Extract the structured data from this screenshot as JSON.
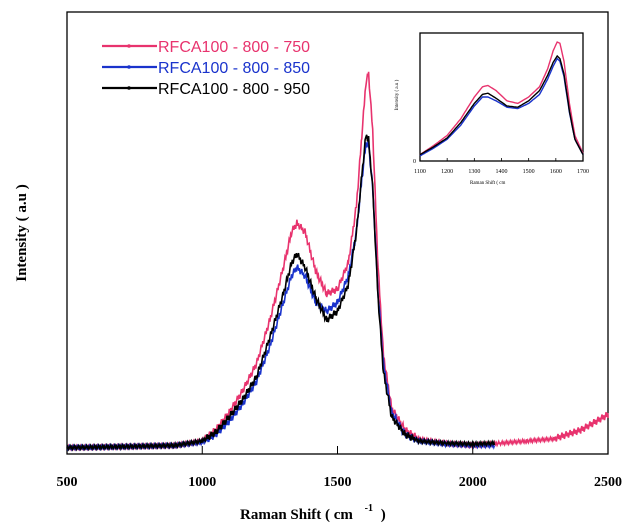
{
  "chart_data": {
    "type": "line",
    "xlabel": "Raman Shift ( cm",
    "xlabel_sup": "-1",
    "xlabel_close": ")",
    "ylabel": "Intensity ( a.u )",
    "xlim": [
      500,
      2500
    ],
    "ylim": [
      0,
      1.0
    ],
    "x_ticks": [
      "500",
      "1000",
      "1500",
      "2000",
      "2500"
    ],
    "legend_position": "top-left",
    "grid": false,
    "series": [
      {
        "name": "RFCA100 - 800 - 750",
        "color": "#e8336e",
        "x_end": 2500,
        "points": [
          [
            500,
            0.01
          ],
          [
            700,
            0.012
          ],
          [
            900,
            0.015
          ],
          [
            1000,
            0.025
          ],
          [
            1050,
            0.05
          ],
          [
            1100,
            0.09
          ],
          [
            1150,
            0.14
          ],
          [
            1200,
            0.2
          ],
          [
            1250,
            0.3
          ],
          [
            1300,
            0.42
          ],
          [
            1330,
            0.5
          ],
          [
            1350,
            0.52
          ],
          [
            1380,
            0.5
          ],
          [
            1420,
            0.41
          ],
          [
            1460,
            0.36
          ],
          [
            1500,
            0.37
          ],
          [
            1540,
            0.43
          ],
          [
            1570,
            0.56
          ],
          [
            1590,
            0.72
          ],
          [
            1605,
            0.84
          ],
          [
            1615,
            0.86
          ],
          [
            1630,
            0.73
          ],
          [
            1650,
            0.42
          ],
          [
            1670,
            0.22
          ],
          [
            1700,
            0.1
          ],
          [
            1750,
            0.05
          ],
          [
            1800,
            0.03
          ],
          [
            1900,
            0.02
          ],
          [
            2000,
            0.015
          ],
          [
            2100,
            0.02
          ],
          [
            2200,
            0.025
          ],
          [
            2300,
            0.03
          ],
          [
            2400,
            0.05
          ],
          [
            2500,
            0.085
          ]
        ]
      },
      {
        "name": "RFCA100 - 800 - 850",
        "color": "#1a33cc",
        "x_end": 2080,
        "points": [
          [
            500,
            0.01
          ],
          [
            700,
            0.012
          ],
          [
            900,
            0.015
          ],
          [
            1000,
            0.022
          ],
          [
            1050,
            0.04
          ],
          [
            1100,
            0.07
          ],
          [
            1150,
            0.11
          ],
          [
            1200,
            0.16
          ],
          [
            1250,
            0.24
          ],
          [
            1300,
            0.34
          ],
          [
            1330,
            0.4
          ],
          [
            1350,
            0.42
          ],
          [
            1380,
            0.4
          ],
          [
            1420,
            0.34
          ],
          [
            1460,
            0.32
          ],
          [
            1500,
            0.34
          ],
          [
            1540,
            0.4
          ],
          [
            1570,
            0.5
          ],
          [
            1590,
            0.62
          ],
          [
            1605,
            0.7
          ],
          [
            1615,
            0.7
          ],
          [
            1630,
            0.6
          ],
          [
            1650,
            0.36
          ],
          [
            1670,
            0.2
          ],
          [
            1700,
            0.09
          ],
          [
            1750,
            0.04
          ],
          [
            1800,
            0.025
          ],
          [
            1900,
            0.018
          ],
          [
            2000,
            0.015
          ],
          [
            2080,
            0.015
          ]
        ]
      },
      {
        "name": "RFCA100 - 800 - 950",
        "color": "#000000",
        "x_end": 2080,
        "points": [
          [
            500,
            0.01
          ],
          [
            700,
            0.012
          ],
          [
            900,
            0.015
          ],
          [
            1000,
            0.025
          ],
          [
            1050,
            0.045
          ],
          [
            1100,
            0.08
          ],
          [
            1150,
            0.12
          ],
          [
            1200,
            0.17
          ],
          [
            1250,
            0.26
          ],
          [
            1300,
            0.36
          ],
          [
            1330,
            0.43
          ],
          [
            1350,
            0.45
          ],
          [
            1380,
            0.42
          ],
          [
            1420,
            0.35
          ],
          [
            1460,
            0.3
          ],
          [
            1500,
            0.32
          ],
          [
            1540,
            0.38
          ],
          [
            1570,
            0.5
          ],
          [
            1590,
            0.63
          ],
          [
            1605,
            0.72
          ],
          [
            1615,
            0.71
          ],
          [
            1630,
            0.6
          ],
          [
            1650,
            0.35
          ],
          [
            1670,
            0.18
          ],
          [
            1700,
            0.08
          ],
          [
            1750,
            0.04
          ],
          [
            1800,
            0.025
          ],
          [
            1900,
            0.02
          ],
          [
            2000,
            0.018
          ],
          [
            2080,
            0.02
          ]
        ]
      }
    ],
    "inset": {
      "xlim": [
        1100,
        1700
      ],
      "ylim": [
        0,
        1.0
      ],
      "x_ticks": [
        "1100",
        "1200",
        "1300",
        "1400",
        "1500",
        "1600",
        "1700"
      ],
      "y_ticks": [
        "0"
      ],
      "xlabel": "Raman Shift ( cm",
      "ylabel": "Intensity ( a.u )",
      "series": [
        {
          "color": "#e8336e",
          "points": [
            [
              1100,
              0.05
            ],
            [
              1150,
              0.12
            ],
            [
              1200,
              0.2
            ],
            [
              1250,
              0.33
            ],
            [
              1300,
              0.5
            ],
            [
              1330,
              0.58
            ],
            [
              1350,
              0.59
            ],
            [
              1380,
              0.55
            ],
            [
              1420,
              0.47
            ],
            [
              1460,
              0.45
            ],
            [
              1500,
              0.5
            ],
            [
              1540,
              0.58
            ],
            [
              1570,
              0.72
            ],
            [
              1590,
              0.86
            ],
            [
              1605,
              0.93
            ],
            [
              1615,
              0.92
            ],
            [
              1630,
              0.78
            ],
            [
              1650,
              0.45
            ],
            [
              1670,
              0.2
            ],
            [
              1700,
              0.06
            ]
          ]
        },
        {
          "color": "#1a33cc",
          "points": [
            [
              1100,
              0.04
            ],
            [
              1150,
              0.1
            ],
            [
              1200,
              0.17
            ],
            [
              1250,
              0.28
            ],
            [
              1300,
              0.43
            ],
            [
              1330,
              0.5
            ],
            [
              1350,
              0.5
            ],
            [
              1380,
              0.47
            ],
            [
              1420,
              0.42
            ],
            [
              1460,
              0.41
            ],
            [
              1500,
              0.45
            ],
            [
              1540,
              0.52
            ],
            [
              1570,
              0.64
            ],
            [
              1590,
              0.74
            ],
            [
              1605,
              0.8
            ],
            [
              1615,
              0.78
            ],
            [
              1630,
              0.66
            ],
            [
              1650,
              0.38
            ],
            [
              1670,
              0.17
            ],
            [
              1700,
              0.05
            ]
          ]
        },
        {
          "color": "#000000",
          "points": [
            [
              1100,
              0.05
            ],
            [
              1150,
              0.11
            ],
            [
              1200,
              0.18
            ],
            [
              1250,
              0.3
            ],
            [
              1300,
              0.45
            ],
            [
              1330,
              0.52
            ],
            [
              1350,
              0.53
            ],
            [
              1380,
              0.49
            ],
            [
              1420,
              0.43
            ],
            [
              1460,
              0.42
            ],
            [
              1500,
              0.47
            ],
            [
              1540,
              0.55
            ],
            [
              1570,
              0.67
            ],
            [
              1590,
              0.77
            ],
            [
              1605,
              0.82
            ],
            [
              1615,
              0.8
            ],
            [
              1630,
              0.68
            ],
            [
              1650,
              0.39
            ],
            [
              1670,
              0.17
            ],
            [
              1700,
              0.05
            ]
          ]
        }
      ]
    }
  }
}
